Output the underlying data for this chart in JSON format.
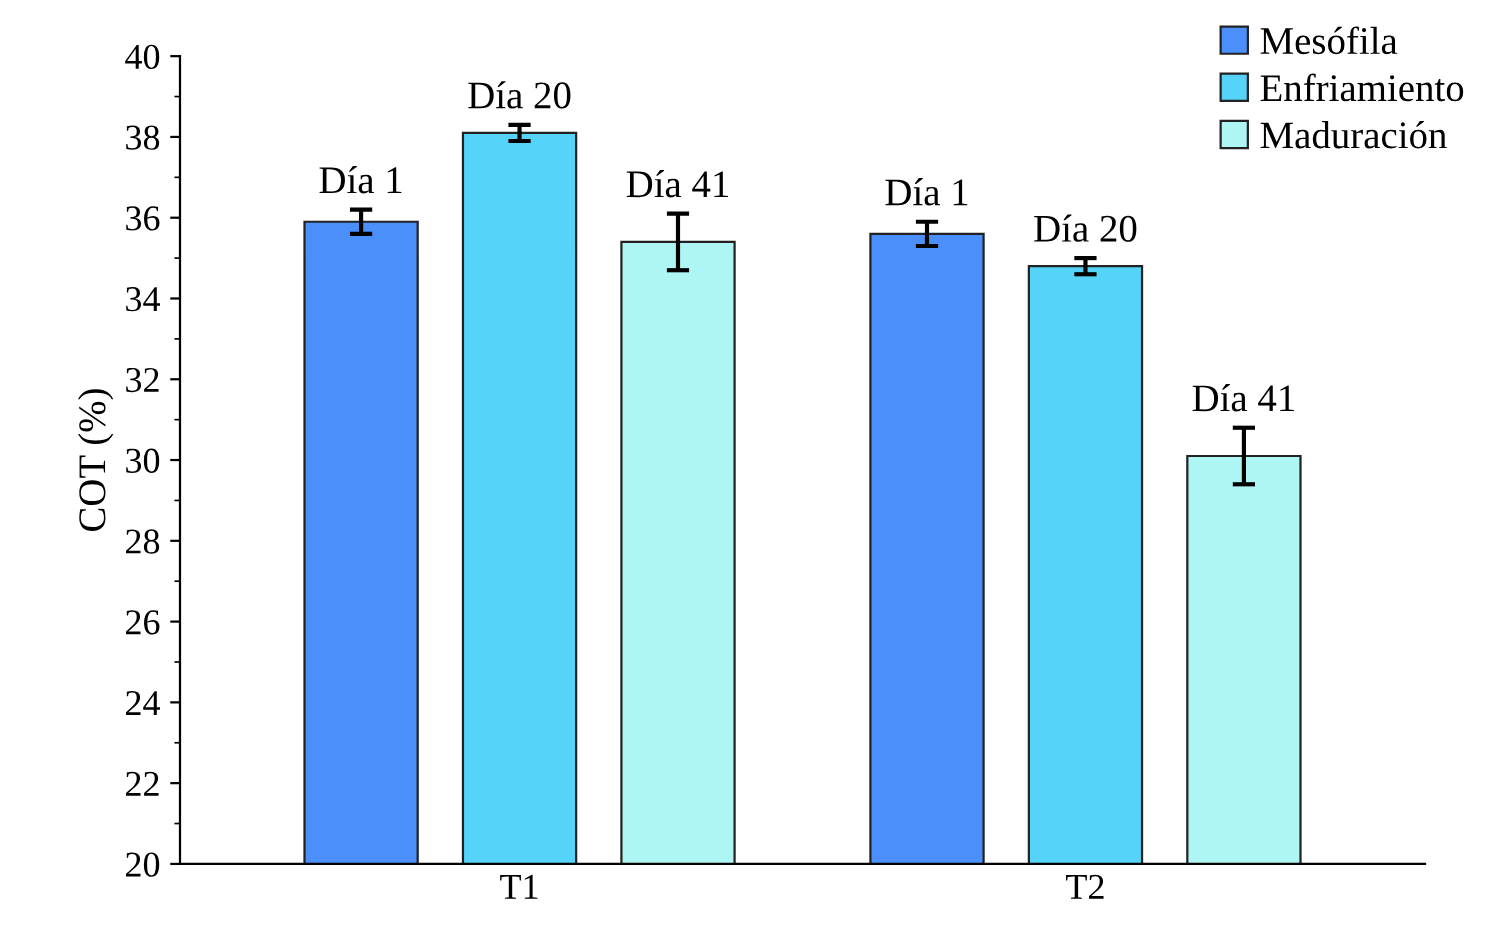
{
  "chart_data": {
    "type": "bar",
    "ylabel": "COT (%)",
    "categories": [
      "T1",
      "T2"
    ],
    "series": [
      {
        "name": "Mesófila",
        "color": "#4a8ffa",
        "values": [
          35.9,
          35.6
        ],
        "errors": [
          0.3,
          0.3
        ],
        "value_labels": [
          "Día 1",
          "Día 1"
        ]
      },
      {
        "name": "Enfriamiento",
        "color": "#55d3f8",
        "values": [
          38.1,
          34.8
        ],
        "errors": [
          0.2,
          0.2
        ],
        "value_labels": [
          "Día 20",
          "Día 20"
        ]
      },
      {
        "name": "Maduración",
        "color": "#aef6f3",
        "values": [
          35.4,
          30.1
        ],
        "errors": [
          0.7,
          0.7
        ],
        "value_labels": [
          "Día 41",
          "Día 41"
        ]
      }
    ],
    "ylim": [
      20,
      40
    ],
    "yticks": [
      20,
      22,
      24,
      26,
      28,
      30,
      32,
      34,
      36,
      38,
      40
    ],
    "legend": "top right",
    "grid": false
  }
}
